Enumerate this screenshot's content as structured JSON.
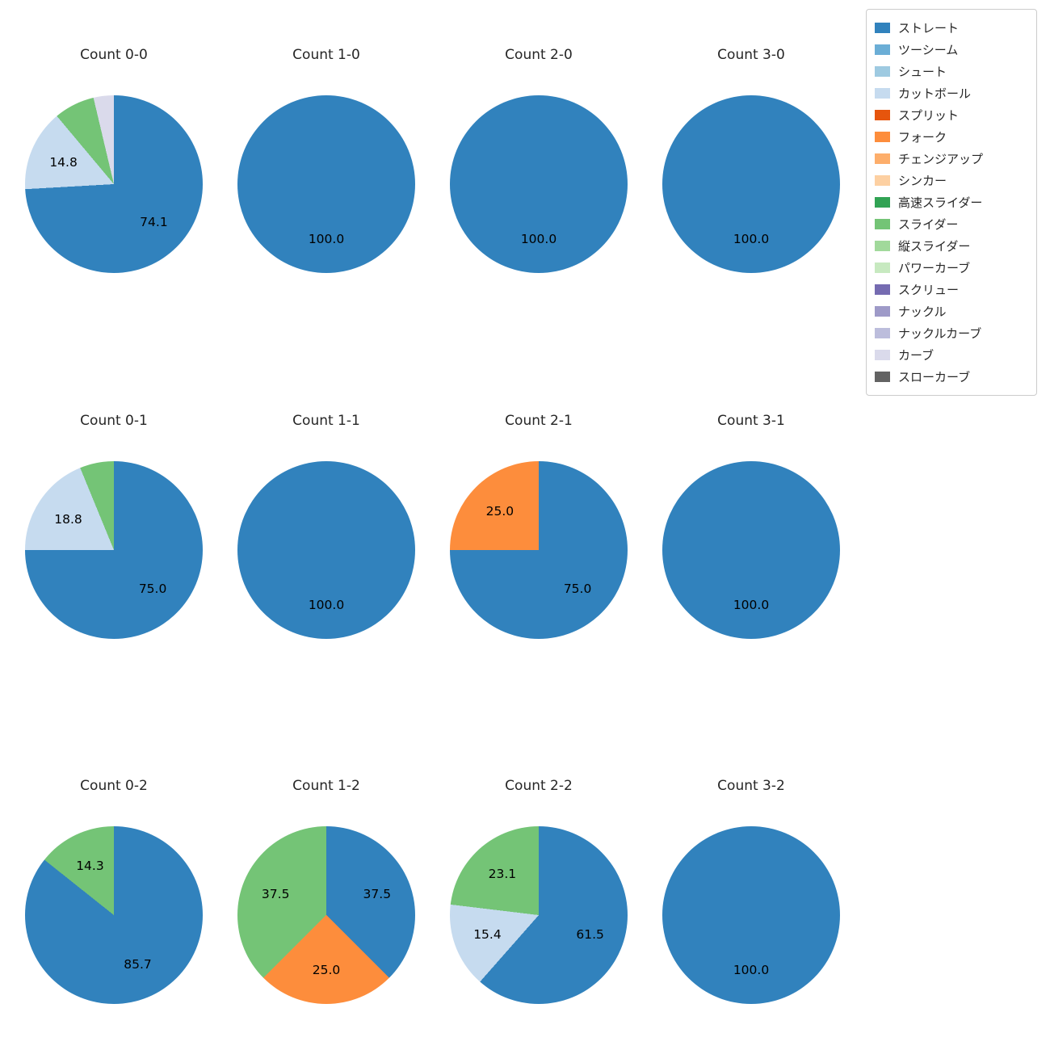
{
  "legend": {
    "items": [
      {
        "label": "ストレート",
        "color": "#3182bd"
      },
      {
        "label": "ツーシーム",
        "color": "#6baed6"
      },
      {
        "label": "シュート",
        "color": "#9ecae1"
      },
      {
        "label": "カットボール",
        "color": "#c6dbef"
      },
      {
        "label": "スプリット",
        "color": "#e6550d"
      },
      {
        "label": "フォーク",
        "color": "#fd8d3c"
      },
      {
        "label": "チェンジアップ",
        "color": "#fdae6b"
      },
      {
        "label": "シンカー",
        "color": "#fdd0a2"
      },
      {
        "label": "高速スライダー",
        "color": "#31a354"
      },
      {
        "label": "スライダー",
        "color": "#74c476"
      },
      {
        "label": "縦スライダー",
        "color": "#a1d99b"
      },
      {
        "label": "パワーカーブ",
        "color": "#c7e9c0"
      },
      {
        "label": "スクリュー",
        "color": "#756bb1"
      },
      {
        "label": "ナックル",
        "color": "#9e9ac8"
      },
      {
        "label": "ナックルカーブ",
        "color": "#bcbddc"
      },
      {
        "label": "カーブ",
        "color": "#dadaeb"
      },
      {
        "label": "スローカーブ",
        "color": "#636363"
      }
    ]
  },
  "chart_data": [
    {
      "type": "pie",
      "title": "Count 0-0",
      "slices": [
        {
          "label": "ストレート",
          "value": 74.1,
          "pct_text": "74.1"
        },
        {
          "label": "カットボール",
          "value": 14.8,
          "pct_text": "14.8"
        },
        {
          "label": "スライダー",
          "value": 7.4,
          "pct_text": null
        },
        {
          "label": "カーブ",
          "value": 3.7,
          "pct_text": null
        }
      ]
    },
    {
      "type": "pie",
      "title": "Count 1-0",
      "slices": [
        {
          "label": "ストレート",
          "value": 100.0,
          "pct_text": "100.0"
        }
      ]
    },
    {
      "type": "pie",
      "title": "Count 2-0",
      "slices": [
        {
          "label": "ストレート",
          "value": 100.0,
          "pct_text": "100.0"
        }
      ]
    },
    {
      "type": "pie",
      "title": "Count 3-0",
      "slices": [
        {
          "label": "ストレート",
          "value": 100.0,
          "pct_text": "100.0"
        }
      ]
    },
    {
      "type": "pie",
      "title": "Count 0-1",
      "slices": [
        {
          "label": "ストレート",
          "value": 75.0,
          "pct_text": "75.0"
        },
        {
          "label": "カットボール",
          "value": 18.8,
          "pct_text": "18.8"
        },
        {
          "label": "スライダー",
          "value": 6.2,
          "pct_text": null
        }
      ]
    },
    {
      "type": "pie",
      "title": "Count 1-1",
      "slices": [
        {
          "label": "ストレート",
          "value": 100.0,
          "pct_text": "100.0"
        }
      ]
    },
    {
      "type": "pie",
      "title": "Count 2-1",
      "slices": [
        {
          "label": "ストレート",
          "value": 75.0,
          "pct_text": "75.0"
        },
        {
          "label": "フォーク",
          "value": 25.0,
          "pct_text": "25.0"
        }
      ]
    },
    {
      "type": "pie",
      "title": "Count 3-1",
      "slices": [
        {
          "label": "ストレート",
          "value": 100.0,
          "pct_text": "100.0"
        }
      ]
    },
    {
      "type": "pie",
      "title": "Count 0-2",
      "slices": [
        {
          "label": "ストレート",
          "value": 85.7,
          "pct_text": "85.7"
        },
        {
          "label": "スライダー",
          "value": 14.3,
          "pct_text": "14.3"
        }
      ]
    },
    {
      "type": "pie",
      "title": "Count 1-2",
      "slices": [
        {
          "label": "ストレート",
          "value": 37.5,
          "pct_text": "37.5"
        },
        {
          "label": "フォーク",
          "value": 25.0,
          "pct_text": "25.0"
        },
        {
          "label": "スライダー",
          "value": 37.5,
          "pct_text": "37.5"
        }
      ]
    },
    {
      "type": "pie",
      "title": "Count 2-2",
      "slices": [
        {
          "label": "ストレート",
          "value": 61.5,
          "pct_text": "61.5"
        },
        {
          "label": "カットボール",
          "value": 15.4,
          "pct_text": "15.4"
        },
        {
          "label": "スライダー",
          "value": 23.1,
          "pct_text": "23.1"
        }
      ]
    },
    {
      "type": "pie",
      "title": "Count 3-2",
      "slices": [
        {
          "label": "ストレート",
          "value": 100.0,
          "pct_text": "100.0"
        }
      ]
    }
  ]
}
